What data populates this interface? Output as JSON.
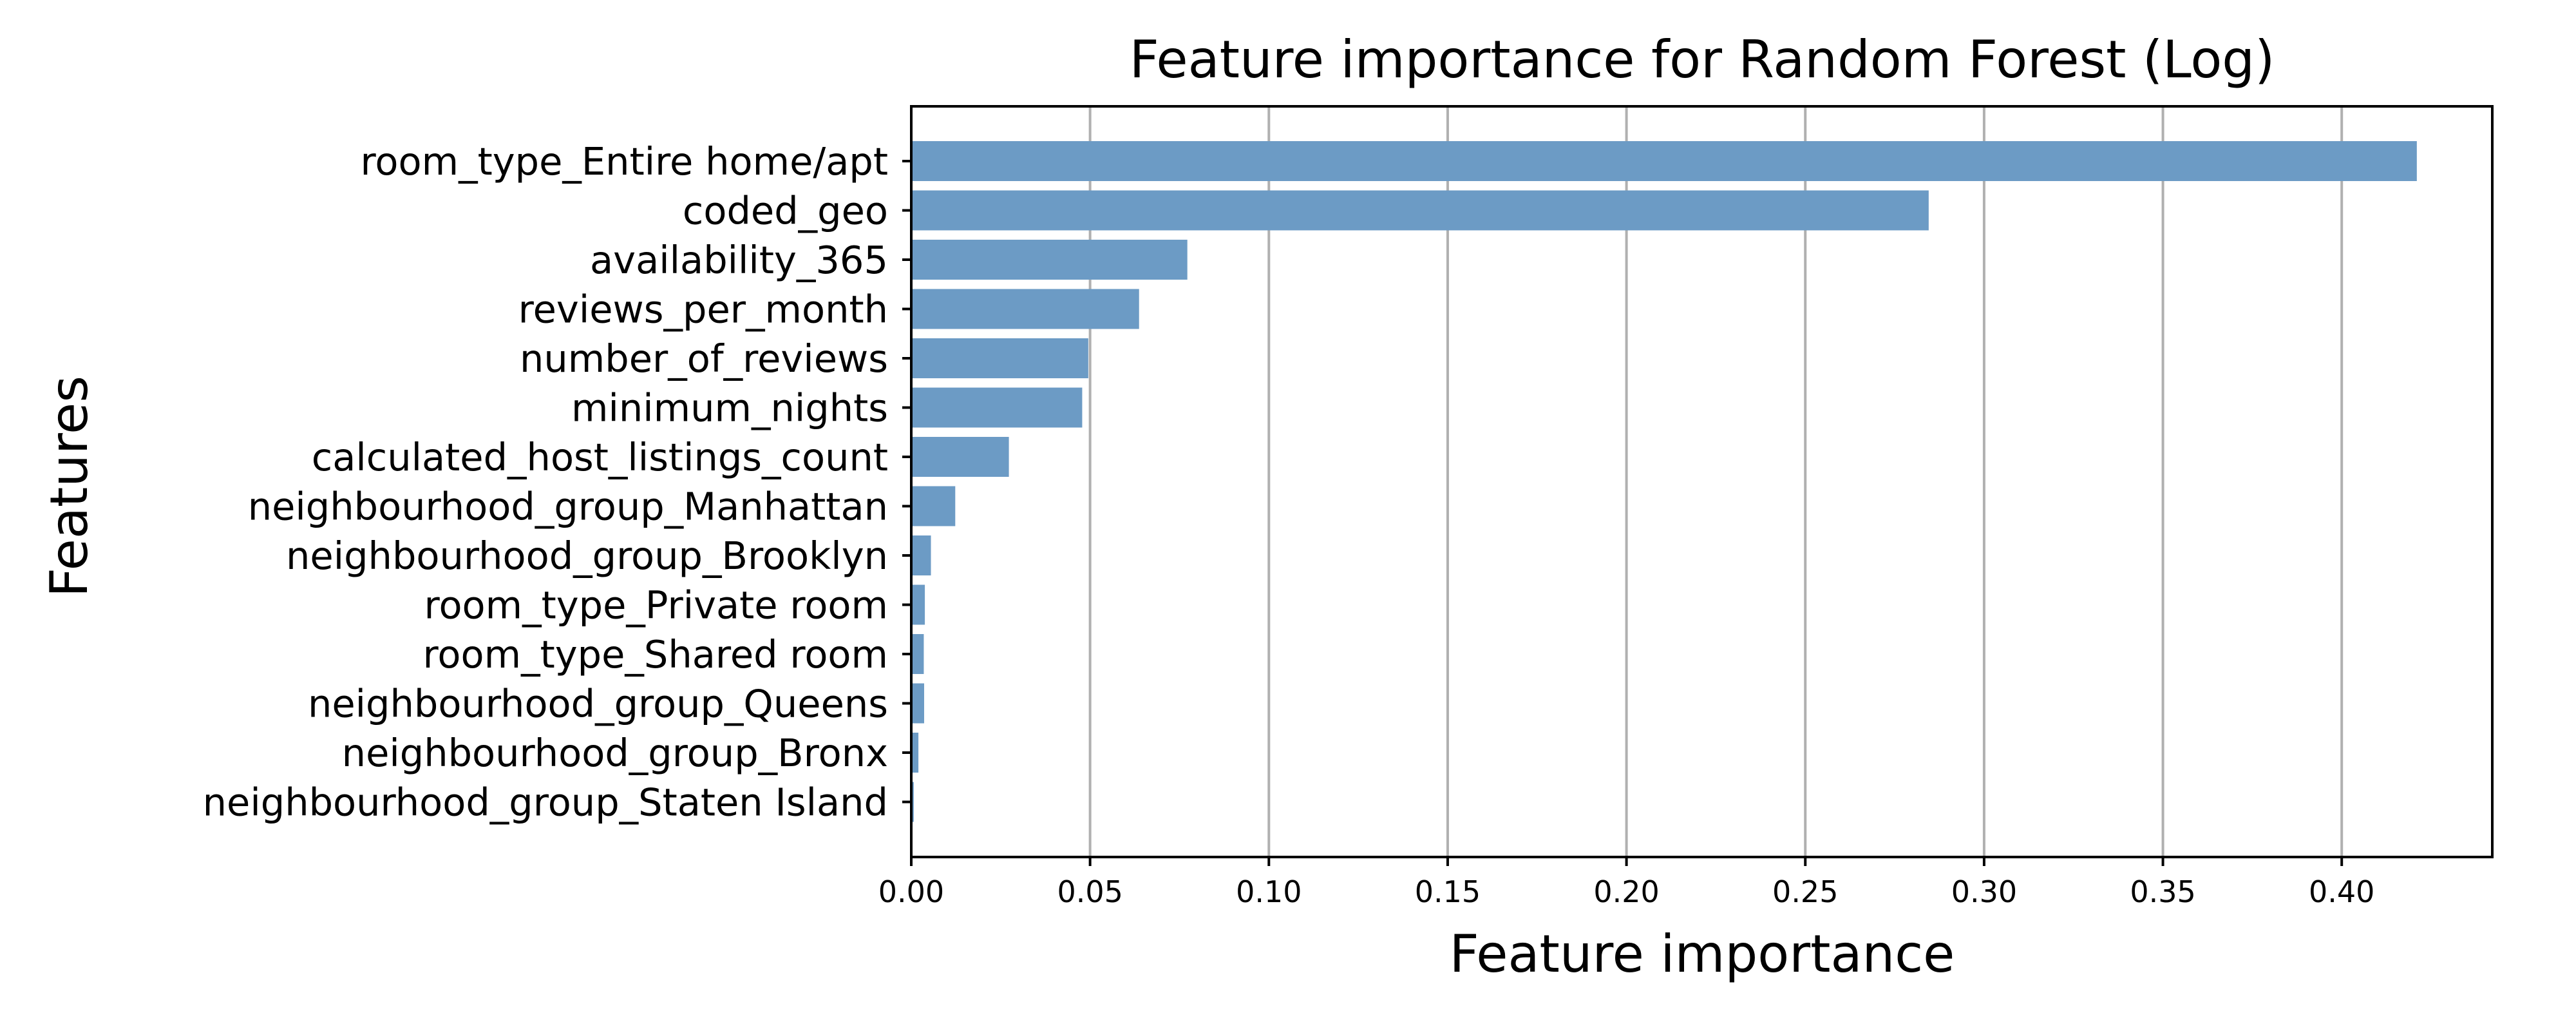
{
  "chart_data": {
    "type": "bar",
    "orientation": "horizontal",
    "title": "Feature importance for Random Forest (Log)",
    "xlabel": "Feature importance",
    "ylabel": "Features",
    "categories": [
      "room_type_Entire home/apt",
      "coded_geo",
      "availability_365",
      "reviews_per_month",
      "number_of_reviews",
      "minimum_nights",
      "calculated_host_listings_count",
      "neighbourhood_group_Manhattan",
      "neighbourhood_group_Brooklyn",
      "room_type_Private room",
      "room_type_Shared room",
      "neighbourhood_group_Queens",
      "neighbourhood_group_Bronx",
      "neighbourhood_group_Staten Island"
    ],
    "values": [
      0.421,
      0.2845,
      0.0772,
      0.0637,
      0.0495,
      0.0478,
      0.0273,
      0.0123,
      0.0055,
      0.0038,
      0.0035,
      0.0036,
      0.002,
      0.0007
    ],
    "xticks": [
      "0.00",
      "0.05",
      "0.10",
      "0.15",
      "0.20",
      "0.25",
      "0.30",
      "0.35",
      "0.40"
    ],
    "xlim": [
      0,
      0.4421
    ],
    "grid": "x",
    "bar_color": "#6c9bc5"
  }
}
